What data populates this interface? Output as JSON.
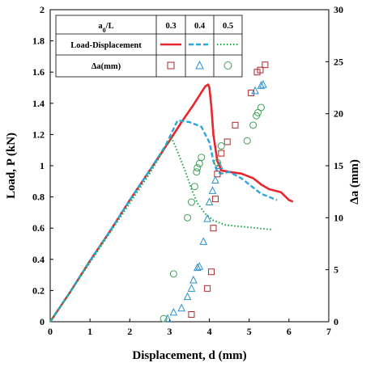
{
  "chart_data": {
    "type": "line",
    "xlabel": "Displacement, d (mm)",
    "ylabel_left": "Load, P (kN)",
    "ylabel_right": "Δa (mm)",
    "xlim": [
      0,
      7
    ],
    "ylim_left": [
      0,
      2
    ],
    "ylim_right": [
      0,
      30
    ],
    "x_ticks": [
      "0",
      "1",
      "2",
      "3",
      "4",
      "5",
      "6",
      "7"
    ],
    "y_ticks_left": [
      "0",
      "0.2",
      "0.4",
      "0.6",
      "0.8",
      "1",
      "1.2",
      "1.4",
      "1.6",
      "1.8",
      "2"
    ],
    "y_ticks_right": [
      "0",
      "5",
      "10",
      "15",
      "20",
      "25",
      "30"
    ],
    "grid": false,
    "legend": {
      "placement": "top-left",
      "header_label": "a0/L",
      "header_values": [
        "0.3",
        "0.4",
        "0.5"
      ],
      "row1_label": "Load-Displacement",
      "row2_label": "Δa(mm)"
    },
    "series": [
      {
        "group": "0.3",
        "kind": "load",
        "axis": "left",
        "color": "#e8262b",
        "style": "solid",
        "x": [
          0,
          0.5,
          1,
          1.5,
          2,
          2.5,
          3,
          3.3,
          3.6,
          3.8,
          3.9,
          3.97,
          4.0,
          4.05,
          4.1,
          4.2,
          4.3,
          4.5,
          4.8,
          5.1,
          5.3,
          5.5,
          5.8,
          6.0,
          6.1
        ],
        "y": [
          0,
          0.19,
          0.39,
          0.58,
          0.78,
          0.97,
          1.16,
          1.28,
          1.39,
          1.47,
          1.51,
          1.52,
          1.5,
          1.38,
          1.2,
          1.03,
          0.97,
          0.96,
          0.95,
          0.92,
          0.88,
          0.85,
          0.83,
          0.78,
          0.77
        ]
      },
      {
        "group": "0.4",
        "kind": "load",
        "axis": "left",
        "color": "#2aa7dc",
        "style": "dashed",
        "x": [
          0,
          0.5,
          1,
          1.5,
          2,
          2.5,
          2.9,
          3.2,
          3.5,
          3.8,
          4.0,
          4.1,
          4.2,
          4.3,
          4.5,
          4.8,
          5.1,
          5.3,
          5.5,
          5.7
        ],
        "y": [
          0,
          0.19,
          0.39,
          0.58,
          0.78,
          0.97,
          1.13,
          1.29,
          1.28,
          1.25,
          1.15,
          1.03,
          0.96,
          0.95,
          0.96,
          0.92,
          0.86,
          0.82,
          0.8,
          0.78
        ]
      },
      {
        "group": "0.5",
        "kind": "load",
        "axis": "left",
        "color": "#22a14a",
        "style": "dotted",
        "x": [
          0,
          0.5,
          1,
          1.5,
          2,
          2.5,
          2.9,
          3.05,
          3.2,
          3.4,
          3.55,
          3.7,
          3.9,
          4.1,
          4.4,
          4.8,
          5.2,
          5.6
        ],
        "y": [
          0,
          0.19,
          0.38,
          0.57,
          0.76,
          0.95,
          1.12,
          1.18,
          1.09,
          0.96,
          0.85,
          0.76,
          0.69,
          0.65,
          0.62,
          0.61,
          0.6,
          0.59
        ]
      },
      {
        "group": "0.3",
        "kind": "crack",
        "axis": "right",
        "color": "#b0282a",
        "marker": "square",
        "x": [
          3.55,
          3.95,
          4.05,
          4.1,
          4.15,
          4.2,
          4.3,
          4.45,
          4.65,
          5.05,
          5.2,
          5.28,
          5.4
        ],
        "y": [
          0.7,
          3.2,
          4.8,
          9,
          11.8,
          14.2,
          16.2,
          17.3,
          18.9,
          22,
          24,
          24.2,
          24.7
        ]
      },
      {
        "group": "0.4",
        "kind": "crack",
        "axis": "right",
        "color": "#2a92cf",
        "marker": "triangle",
        "x": [
          2.95,
          3.1,
          3.3,
          3.45,
          3.55,
          3.6,
          3.7,
          3.75,
          3.85,
          3.95,
          4.0,
          4.08,
          4.15,
          4.25,
          5.15,
          5.3,
          5.35
        ],
        "y": [
          0.3,
          0.9,
          1.3,
          2.4,
          3.2,
          4.0,
          5.2,
          5.3,
          7.7,
          9.9,
          11.5,
          12.6,
          13.6,
          15.0,
          22.2,
          22.7,
          22.8
        ]
      },
      {
        "group": "0.5",
        "kind": "crack",
        "axis": "right",
        "color": "#3c9f55",
        "marker": "circle",
        "x": [
          2.85,
          3.1,
          3.45,
          3.55,
          3.63,
          3.68,
          3.7,
          3.75,
          3.8,
          4.2,
          4.3,
          4.95,
          5.1,
          5.18,
          5.22,
          5.3
        ],
        "y": [
          0.3,
          4.6,
          10.0,
          11.5,
          13.0,
          14.4,
          14.8,
          15.2,
          15.8,
          15.3,
          16.9,
          17.4,
          18.9,
          19.8,
          20.1,
          20.6
        ]
      }
    ]
  }
}
